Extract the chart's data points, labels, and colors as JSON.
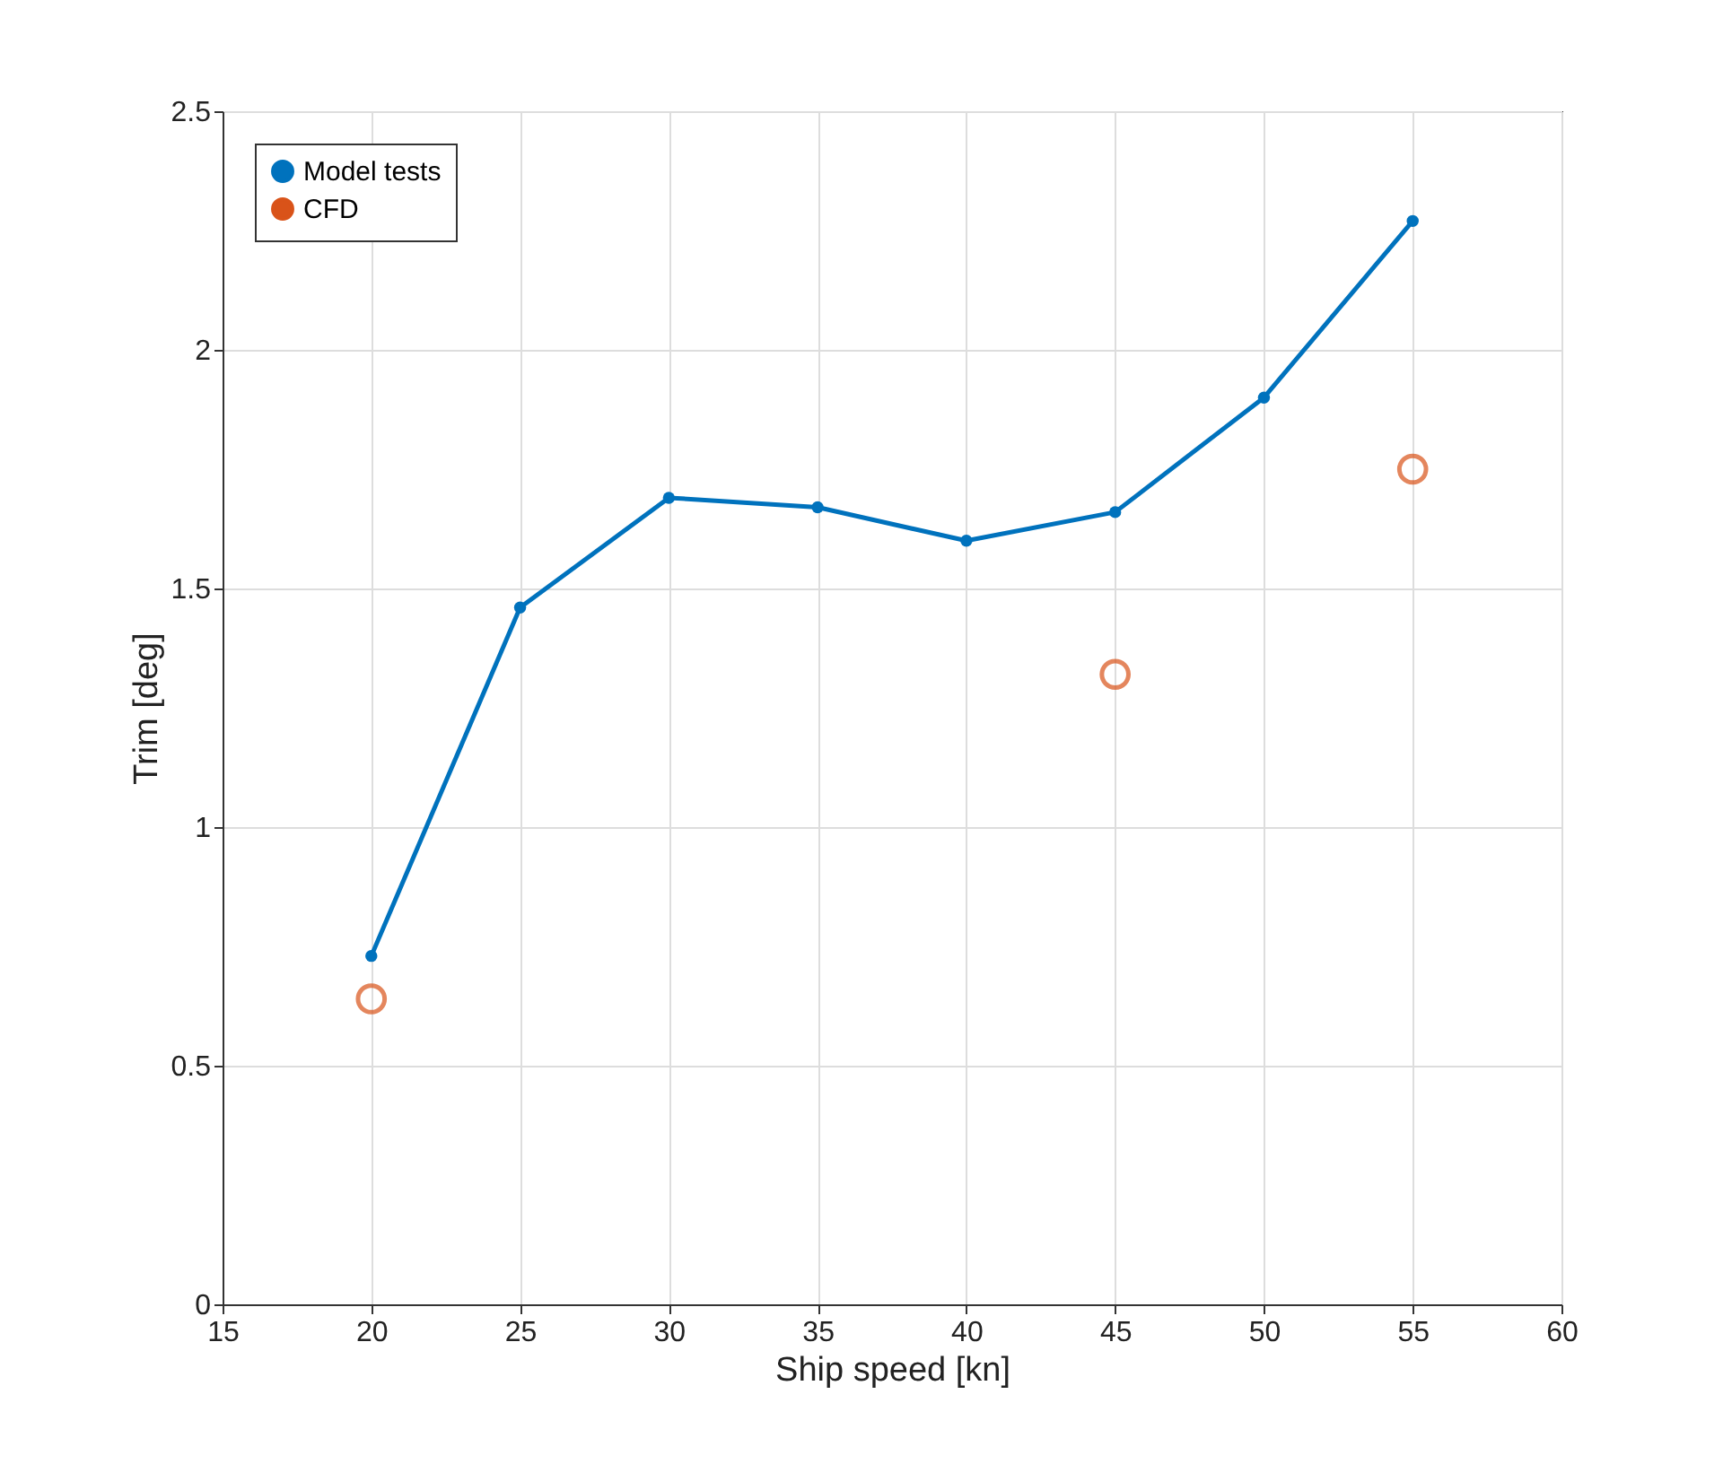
{
  "chart_data": {
    "type": "line",
    "xlabel": "Ship speed [kn]",
    "ylabel": "Trim [deg]",
    "xlim": [
      15,
      60
    ],
    "xticks": [
      15,
      20,
      25,
      30,
      35,
      40,
      45,
      50,
      55,
      60
    ],
    "ylim": [
      0,
      2.5
    ],
    "yticks": [
      0,
      0.5,
      1,
      1.5,
      2,
      2.5
    ],
    "grid": true,
    "legend": "top left",
    "series": [
      {
        "name": "Model tests",
        "color": "#0072bd",
        "marker": "circle",
        "x": [
          20,
          25,
          30,
          35,
          40,
          45,
          50,
          55
        ],
        "values": [
          0.73,
          1.46,
          1.69,
          1.67,
          1.6,
          1.66,
          1.9,
          2.27
        ]
      },
      {
        "name": "CFD",
        "color": "#d95319",
        "type": "scatter",
        "marker": "circle",
        "x": [
          20,
          45,
          55
        ],
        "values": [
          0.64,
          1.32,
          1.75
        ]
      }
    ]
  }
}
